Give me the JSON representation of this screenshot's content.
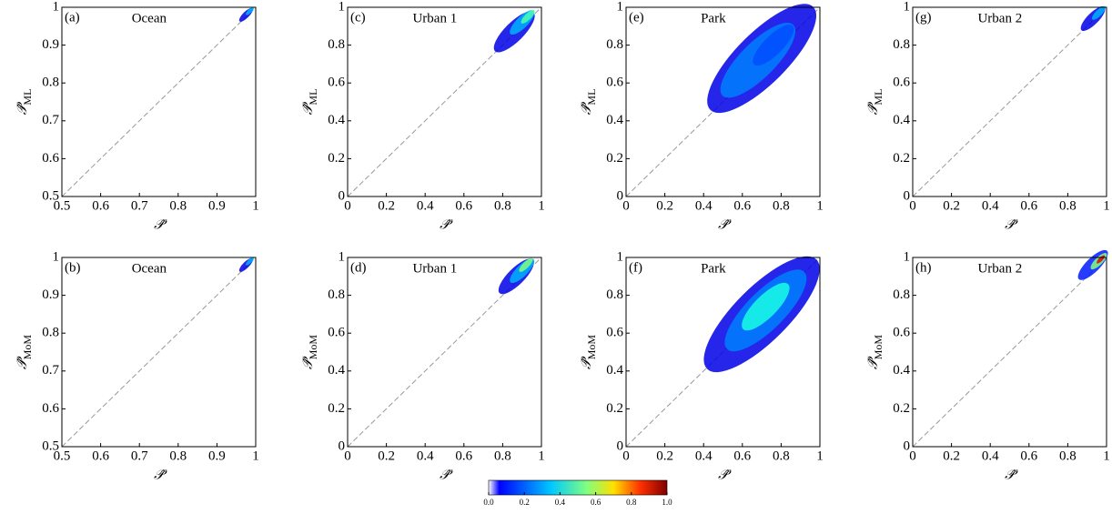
{
  "chart_data": [
    {
      "type": "density",
      "panel": "(a)",
      "title": "Ocean",
      "xlabel": "𝒫̂",
      "ylabel": "𝒫̂",
      "ylabel_sub": "ML",
      "xlim": [
        0.5,
        1
      ],
      "ylim": [
        0.5,
        1
      ],
      "xticks": [
        0.5,
        0.6,
        0.7,
        0.8,
        0.9,
        1
      ],
      "yticks": [
        0.5,
        0.6,
        0.7,
        0.8,
        0.9,
        1
      ],
      "x": [
        0.975,
        0.985
      ],
      "y": [
        0.98,
        0.99
      ],
      "density": [
        0.1,
        0.3
      ]
    },
    {
      "type": "density",
      "panel": "(b)",
      "title": "Ocean",
      "xlabel": "𝒫̂",
      "ylabel": "𝒫̂",
      "ylabel_sub": "MoM",
      "xlim": [
        0.5,
        1
      ],
      "ylim": [
        0.5,
        1
      ],
      "xticks": [
        0.5,
        0.6,
        0.7,
        0.8,
        0.9,
        1
      ],
      "yticks": [
        0.5,
        0.6,
        0.7,
        0.8,
        0.9,
        1
      ],
      "x": [
        0.975,
        0.985
      ],
      "y": [
        0.98,
        0.99
      ],
      "density": [
        0.1,
        0.3
      ]
    },
    {
      "type": "density",
      "panel": "(c)",
      "title": "Urban 1",
      "xlabel": "𝒫̂",
      "ylabel": "𝒫̂",
      "ylabel_sub": "ML",
      "xlim": [
        0,
        1
      ],
      "ylim": [
        0,
        1
      ],
      "xticks": [
        0,
        0.2,
        0.4,
        0.6,
        0.8,
        1
      ],
      "yticks": [
        0,
        0.2,
        0.4,
        0.6,
        0.8,
        1
      ],
      "x": [
        0.86,
        0.9,
        0.93
      ],
      "y": [
        0.87,
        0.92,
        0.95
      ],
      "density": [
        0.1,
        0.3,
        0.45
      ]
    },
    {
      "type": "density",
      "panel": "(d)",
      "title": "Urban 1",
      "xlabel": "𝒫̂",
      "ylabel": "𝒫̂",
      "ylabel_sub": "MoM",
      "xlim": [
        0,
        1
      ],
      "ylim": [
        0,
        1
      ],
      "xticks": [
        0,
        0.2,
        0.4,
        0.6,
        0.8,
        1
      ],
      "yticks": [
        0,
        0.2,
        0.4,
        0.6,
        0.8,
        1
      ],
      "x": [
        0.87,
        0.9,
        0.92
      ],
      "y": [
        0.9,
        0.93,
        0.96
      ],
      "density": [
        0.1,
        0.3,
        0.5
      ]
    },
    {
      "type": "density",
      "panel": "(e)",
      "title": "Park",
      "xlabel": "𝒫̂",
      "ylabel": "𝒫̂",
      "ylabel_sub": "ML",
      "xlim": [
        0,
        1
      ],
      "ylim": [
        0,
        1
      ],
      "xticks": [
        0,
        0.2,
        0.4,
        0.6,
        0.8,
        1
      ],
      "yticks": [
        0,
        0.2,
        0.4,
        0.6,
        0.8,
        1
      ],
      "x": [
        0.7,
        0.68,
        0.76
      ],
      "y": [
        0.73,
        0.72,
        0.8
      ],
      "density": [
        0.1,
        0.25,
        0.2
      ]
    },
    {
      "type": "density",
      "panel": "(f)",
      "title": "Park",
      "xlabel": "𝒫̂",
      "ylabel": "𝒫̂",
      "ylabel_sub": "MoM",
      "xlim": [
        0,
        1
      ],
      "ylim": [
        0,
        1
      ],
      "xticks": [
        0,
        0.2,
        0.4,
        0.6,
        0.8,
        1
      ],
      "yticks": [
        0,
        0.2,
        0.4,
        0.6,
        0.8,
        1
      ],
      "x": [
        0.7,
        0.72,
        0.72
      ],
      "y": [
        0.7,
        0.72,
        0.74
      ],
      "density": [
        0.1,
        0.25,
        0.4
      ]
    },
    {
      "type": "density",
      "panel": "(g)",
      "title": "Urban 2",
      "xlabel": "𝒫̂",
      "ylabel": "𝒫̂",
      "ylabel_sub": "ML",
      "xlim": [
        0,
        1
      ],
      "ylim": [
        0,
        1
      ],
      "xticks": [
        0,
        0.2,
        0.4,
        0.6,
        0.8,
        1
      ],
      "yticks": [
        0,
        0.2,
        0.4,
        0.6,
        0.8,
        1
      ],
      "x": [
        0.93,
        0.96
      ],
      "y": [
        0.94,
        0.97
      ],
      "density": [
        0.1,
        0.3
      ]
    },
    {
      "type": "density",
      "panel": "(h)",
      "title": "Urban 2",
      "xlabel": "𝒫̂",
      "ylabel": "𝒫̂",
      "ylabel_sub": "MoM",
      "xlim": [
        0,
        1
      ],
      "ylim": [
        0,
        1
      ],
      "xticks": [
        0,
        0.2,
        0.4,
        0.6,
        0.8,
        1
      ],
      "yticks": [
        0,
        0.2,
        0.4,
        0.6,
        0.8,
        1
      ],
      "x": [
        0.93,
        0.96,
        0.97
      ],
      "y": [
        0.96,
        0.98,
        0.99
      ],
      "density": [
        0.15,
        0.5,
        0.9
      ]
    },
    {
      "type": "colorbar",
      "lim": [
        0,
        1
      ],
      "ticks": [
        {
          "value": 0,
          "label": "0.0"
        },
        {
          "value": 0.2,
          "label": "0.2"
        },
        {
          "value": 0.4,
          "label": "0.4"
        },
        {
          "value": 0.6,
          "label": "0.6"
        },
        {
          "value": 0.8,
          "label": "0.8"
        },
        {
          "value": 1,
          "label": "1.0"
        }
      ]
    }
  ]
}
